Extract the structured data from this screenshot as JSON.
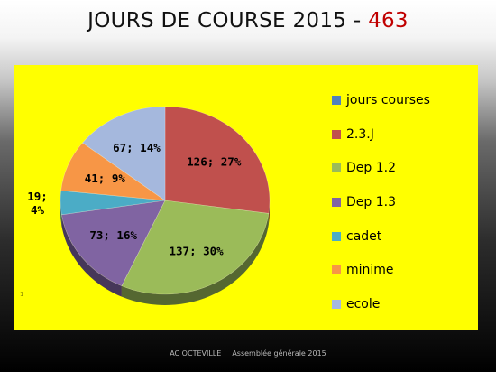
{
  "slide": {
    "title_main": "JOURS DE COURSE 2015 - ",
    "title_total": "463",
    "slide_note": "1",
    "footer_left": "AC OCTEVILLE",
    "footer_right": "Assemblée générale 2015"
  },
  "chart_data": {
    "type": "pie",
    "style": "3d-tilted",
    "title": "",
    "legend_position": "right",
    "slices": [
      {
        "name": "jours courses",
        "value": 0,
        "percent": 0,
        "label": "",
        "color": "#4f81bd"
      },
      {
        "name": "2.3.J",
        "value": 126,
        "percent": 27,
        "label": "126; 27%",
        "color": "#c0504d"
      },
      {
        "name": "Dep 1.2",
        "value": 137,
        "percent": 30,
        "label": "137; 30%",
        "color": "#9bbb59"
      },
      {
        "name": "Dep 1.3",
        "value": 73,
        "percent": 16,
        "label": "73; 16%",
        "color": "#8064a2"
      },
      {
        "name": "cadet",
        "value": 19,
        "percent": 4,
        "label": "19;\n4%",
        "color": "#4bacc6"
      },
      {
        "name": "minime",
        "value": 41,
        "percent": 9,
        "label": "41; 9%",
        "color": "#f79646"
      },
      {
        "name": "ecole",
        "value": 67,
        "percent": 14,
        "label": "67; 14%",
        "color": "#a5b8dd"
      }
    ]
  }
}
